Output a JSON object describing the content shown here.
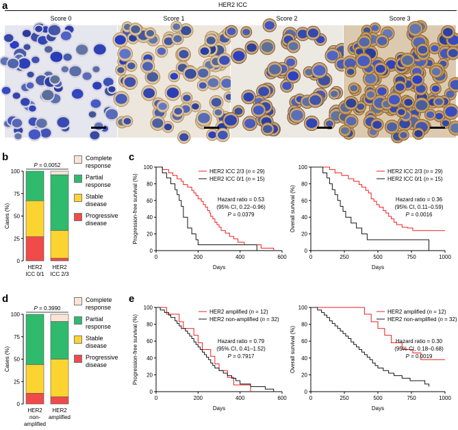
{
  "panel_letters": {
    "a": "a",
    "b": "b",
    "c": "c",
    "d": "d",
    "e": "e"
  },
  "panel_a": {
    "title": "HER2 ICC",
    "scores": [
      "Score 0",
      "Score 1",
      "Score 2",
      "Score 3"
    ]
  },
  "colors": {
    "complete": "#fbe4d5",
    "partial": "#2fba6e",
    "stable": "#fcd431",
    "progressive": "#f04a4a",
    "her2_high": "#ee1c1c",
    "her2_low": "#111111"
  },
  "legend_response": [
    "Complete response",
    "Partial response",
    "Stable disease",
    "Progressive disease"
  ],
  "chart_data": [
    {
      "id": "b",
      "type": "bar",
      "stacked": true,
      "title": "",
      "pvalue": "P = 0.0052",
      "ylabel": "Cases (%)",
      "ylim": [
        0,
        100
      ],
      "yticks": [
        "0",
        "25",
        "50",
        "75",
        "100"
      ],
      "categories": [
        "HER2 ICC 0/1",
        "HER2 ICC 2/3"
      ],
      "series": [
        {
          "name": "Progressive disease",
          "values": [
            27,
            3
          ]
        },
        {
          "name": "Stable disease",
          "values": [
            40,
            31
          ]
        },
        {
          "name": "Partial response",
          "values": [
            33,
            62
          ]
        },
        {
          "name": "Complete response",
          "values": [
            0,
            4
          ]
        }
      ]
    },
    {
      "id": "d",
      "type": "bar",
      "stacked": true,
      "title": "",
      "pvalue": "P = 0.3990",
      "ylabel": "Cases (%)",
      "ylim": [
        0,
        100
      ],
      "yticks": [
        "0",
        "25",
        "50",
        "75",
        "100"
      ],
      "categories": [
        "HER2 non-amplified",
        "HER2 amplified"
      ],
      "series": [
        {
          "name": "Progressive disease",
          "values": [
            12,
            8
          ]
        },
        {
          "name": "Stable disease",
          "values": [
            32,
            42
          ]
        },
        {
          "name": "Partial response",
          "values": [
            56,
            42
          ]
        },
        {
          "name": "Complete response",
          "values": [
            0,
            8
          ]
        }
      ]
    },
    {
      "id": "c1",
      "type": "line",
      "step": true,
      "xlabel": "Days",
      "ylabel": "Progression-free survival (%)",
      "xlim": [
        0,
        600
      ],
      "ylim": [
        0,
        100
      ],
      "xticks": [
        "0",
        "200",
        "400",
        "600"
      ],
      "yticks": [
        "0",
        "20",
        "40",
        "60",
        "80",
        "100"
      ],
      "legend": [
        "HER2 ICC 2/3 (n = 29)",
        "HER2 ICC 0/1 (n = 15)"
      ],
      "stats": [
        "Hazard ratio = 0.53",
        "(95% CI, 0.22–0.96)",
        "P = 0.0379"
      ],
      "series": [
        {
          "name": "HER2 ICC 2/3",
          "x": [
            0,
            30,
            60,
            80,
            100,
            120,
            130,
            150,
            170,
            180,
            190,
            200,
            215,
            225,
            235,
            245,
            255,
            260,
            270,
            280,
            290,
            300,
            310,
            330,
            350,
            370,
            390,
            420,
            460,
            500,
            560
          ],
          "y": [
            100,
            97,
            93,
            90,
            86,
            83,
            79,
            76,
            72,
            69,
            66,
            62,
            59,
            55,
            52,
            48,
            45,
            41,
            38,
            34,
            31,
            28,
            24,
            21,
            17,
            14,
            10,
            7,
            7,
            3,
            0
          ]
        },
        {
          "name": "HER2 ICC 0/1",
          "x": [
            0,
            30,
            50,
            70,
            90,
            100,
            110,
            120,
            130,
            150,
            170,
            190,
            200,
            470,
            480
          ],
          "y": [
            100,
            93,
            87,
            80,
            73,
            67,
            60,
            53,
            40,
            27,
            20,
            13,
            7,
            7,
            0
          ]
        }
      ]
    },
    {
      "id": "c2",
      "type": "line",
      "step": true,
      "xlabel": "Days",
      "ylabel": "Overall survival (%)",
      "xlim": [
        0,
        1000
      ],
      "ylim": [
        0,
        100
      ],
      "xticks": [
        "0",
        "250",
        "500",
        "750",
        "1000"
      ],
      "yticks": [
        "0",
        "20",
        "40",
        "60",
        "80",
        "100"
      ],
      "legend": [
        "HER2 ICC 2/3 (n = 29)",
        "HER2 ICC 0/1 (n = 15)"
      ],
      "stats": [
        "Hazard ratio = 0.36",
        "(95% CI, 0.11–0.59)",
        "P = 0.0016"
      ],
      "series": [
        {
          "name": "HER2 ICC 2/3",
          "x": [
            0,
            140,
            180,
            230,
            280,
            320,
            360,
            380,
            410,
            430,
            450,
            470,
            490,
            510,
            540,
            560,
            580,
            600,
            620,
            640,
            680,
            720,
            760,
            860,
            1000
          ],
          "y": [
            100,
            97,
            93,
            90,
            86,
            83,
            79,
            76,
            72,
            69,
            62,
            59,
            55,
            52,
            48,
            45,
            41,
            38,
            34,
            31,
            28,
            27,
            24,
            24,
            24
          ]
        },
        {
          "name": "HER2 ICC 0/1",
          "x": [
            0,
            90,
            120,
            140,
            160,
            180,
            200,
            220,
            240,
            260,
            300,
            340,
            380,
            420,
            460,
            600,
            820,
            880
          ],
          "y": [
            100,
            93,
            87,
            80,
            73,
            67,
            60,
            53,
            47,
            40,
            33,
            27,
            20,
            13,
            13,
            13,
            13,
            0
          ]
        }
      ]
    },
    {
      "id": "e1",
      "type": "line",
      "step": true,
      "xlabel": "Days",
      "ylabel": "Progression-free survival (%)",
      "xlim": [
        0,
        600
      ],
      "ylim": [
        0,
        100
      ],
      "xticks": [
        "0",
        "200",
        "400",
        "600"
      ],
      "yticks": [
        "0",
        "20",
        "40",
        "60",
        "80",
        "100"
      ],
      "legend": [
        "HER2 amplified (n = 12)",
        "HER2 non-amplified (n = 32)"
      ],
      "stats": [
        "Hazard ratio = 0.79",
        "(95% CI, 0.41–1.52)",
        "P = 0.7917"
      ],
      "series": [
        {
          "name": "HER2 amplified",
          "x": [
            0,
            50,
            110,
            130,
            180,
            200,
            220,
            260,
            280,
            300,
            340,
            370,
            400,
            450
          ],
          "y": [
            100,
            92,
            83,
            75,
            67,
            58,
            50,
            42,
            33,
            25,
            17,
            8,
            8,
            0
          ]
        },
        {
          "name": "HER2 non-amplified",
          "x": [
            0,
            20,
            40,
            60,
            70,
            90,
            100,
            110,
            120,
            140,
            150,
            160,
            170,
            180,
            190,
            200,
            210,
            220,
            230,
            240,
            250,
            260,
            270,
            280,
            300,
            320,
            340,
            360,
            380,
            400,
            450,
            520,
            560
          ],
          "y": [
            100,
            97,
            94,
            91,
            88,
            84,
            81,
            78,
            75,
            72,
            69,
            66,
            63,
            59,
            56,
            53,
            50,
            47,
            44,
            41,
            38,
            34,
            31,
            28,
            25,
            22,
            19,
            16,
            13,
            9,
            6,
            3,
            0
          ]
        }
      ]
    },
    {
      "id": "e2",
      "type": "line",
      "step": true,
      "xlabel": "Days",
      "ylabel": "Overall survival (%)",
      "xlim": [
        0,
        1000
      ],
      "ylim": [
        0,
        100
      ],
      "xticks": [
        "0",
        "250",
        "500",
        "750",
        "1000"
      ],
      "yticks": [
        "0",
        "20",
        "40",
        "60",
        "80",
        "100"
      ],
      "legend": [
        "HER2 amplified (n = 12)",
        "HER2 non-amplified (n = 32)"
      ],
      "stats": [
        "Hazard ratio = 0.30",
        "(95% CI, 0.18–0.68)",
        "P = 0.0019"
      ],
      "series": [
        {
          "name": "HER2 amplified",
          "x": [
            0,
            400,
            450,
            500,
            550,
            600,
            680,
            760,
            820,
            1000
          ],
          "y": [
            100,
            92,
            83,
            75,
            67,
            58,
            50,
            46,
            38,
            38
          ]
        },
        {
          "name": "HER2 non-amplified",
          "x": [
            0,
            50,
            80,
            100,
            120,
            140,
            160,
            180,
            200,
            220,
            240,
            260,
            280,
            300,
            320,
            340,
            360,
            380,
            400,
            420,
            440,
            460,
            480,
            500,
            540,
            580,
            620,
            680,
            740,
            800,
            850,
            880
          ],
          "y": [
            100,
            97,
            94,
            91,
            88,
            84,
            81,
            78,
            75,
            72,
            69,
            66,
            63,
            59,
            56,
            53,
            50,
            47,
            44,
            41,
            38,
            34,
            31,
            28,
            25,
            22,
            19,
            16,
            13,
            13,
            9,
            6
          ]
        }
      ]
    }
  ]
}
